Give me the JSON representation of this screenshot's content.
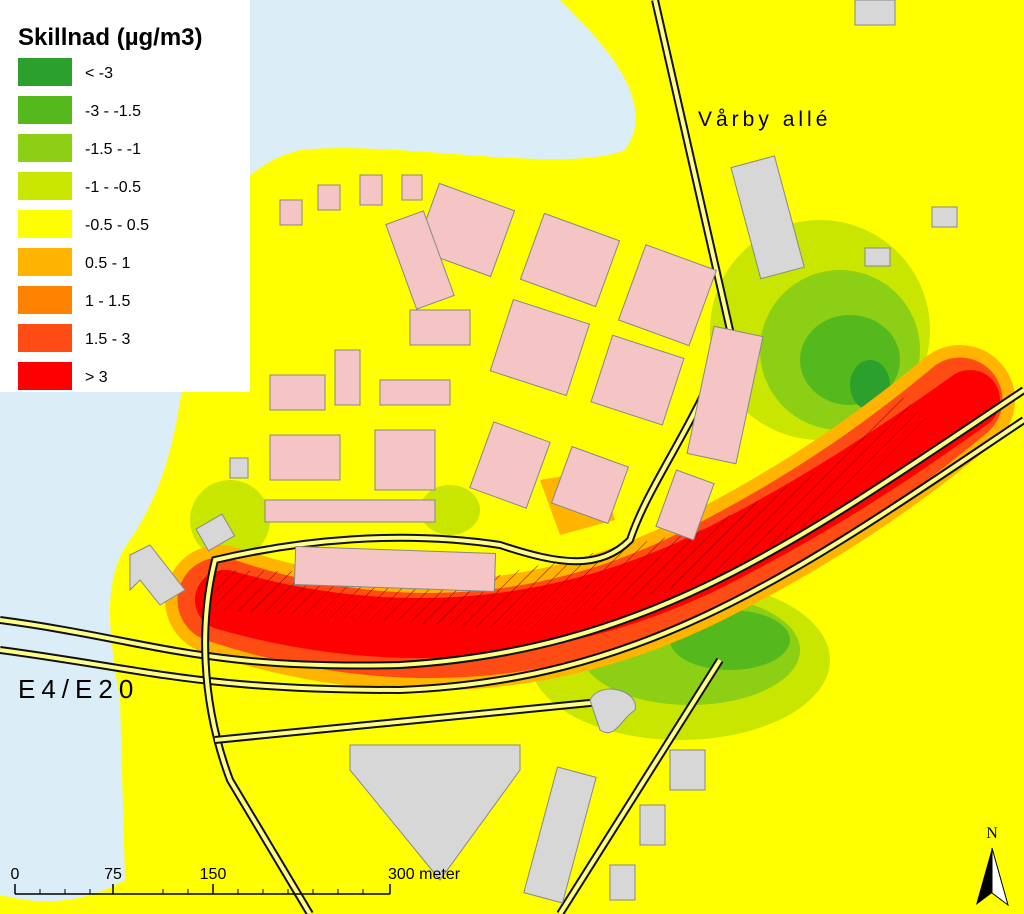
{
  "legend": {
    "title": "Skillnad (µg/m3)",
    "items": [
      {
        "label": "< -3",
        "color": "#2ca02c"
      },
      {
        "label": "-3 - -1.5",
        "color": "#55b91e"
      },
      {
        "label": "-1.5 - -1",
        "color": "#8ccf14"
      },
      {
        "label": "-1 - -0.5",
        "color": "#c8e600"
      },
      {
        "label": "-0.5 - 0.5",
        "color": "#ffff00"
      },
      {
        "label": "0.5 - 1",
        "color": "#ffb400"
      },
      {
        "label": "1 - 1.5",
        "color": "#ff8200"
      },
      {
        "label": "1.5 - 3",
        "color": "#ff4b14"
      },
      {
        "label": "> 3",
        "color": "#ff0000"
      }
    ]
  },
  "labels": {
    "road_north": "Vårby allé",
    "road_south": "E4/E20",
    "north": "N"
  },
  "scale_bar": {
    "labels": [
      "0",
      "75",
      "150",
      "300 meter"
    ]
  }
}
